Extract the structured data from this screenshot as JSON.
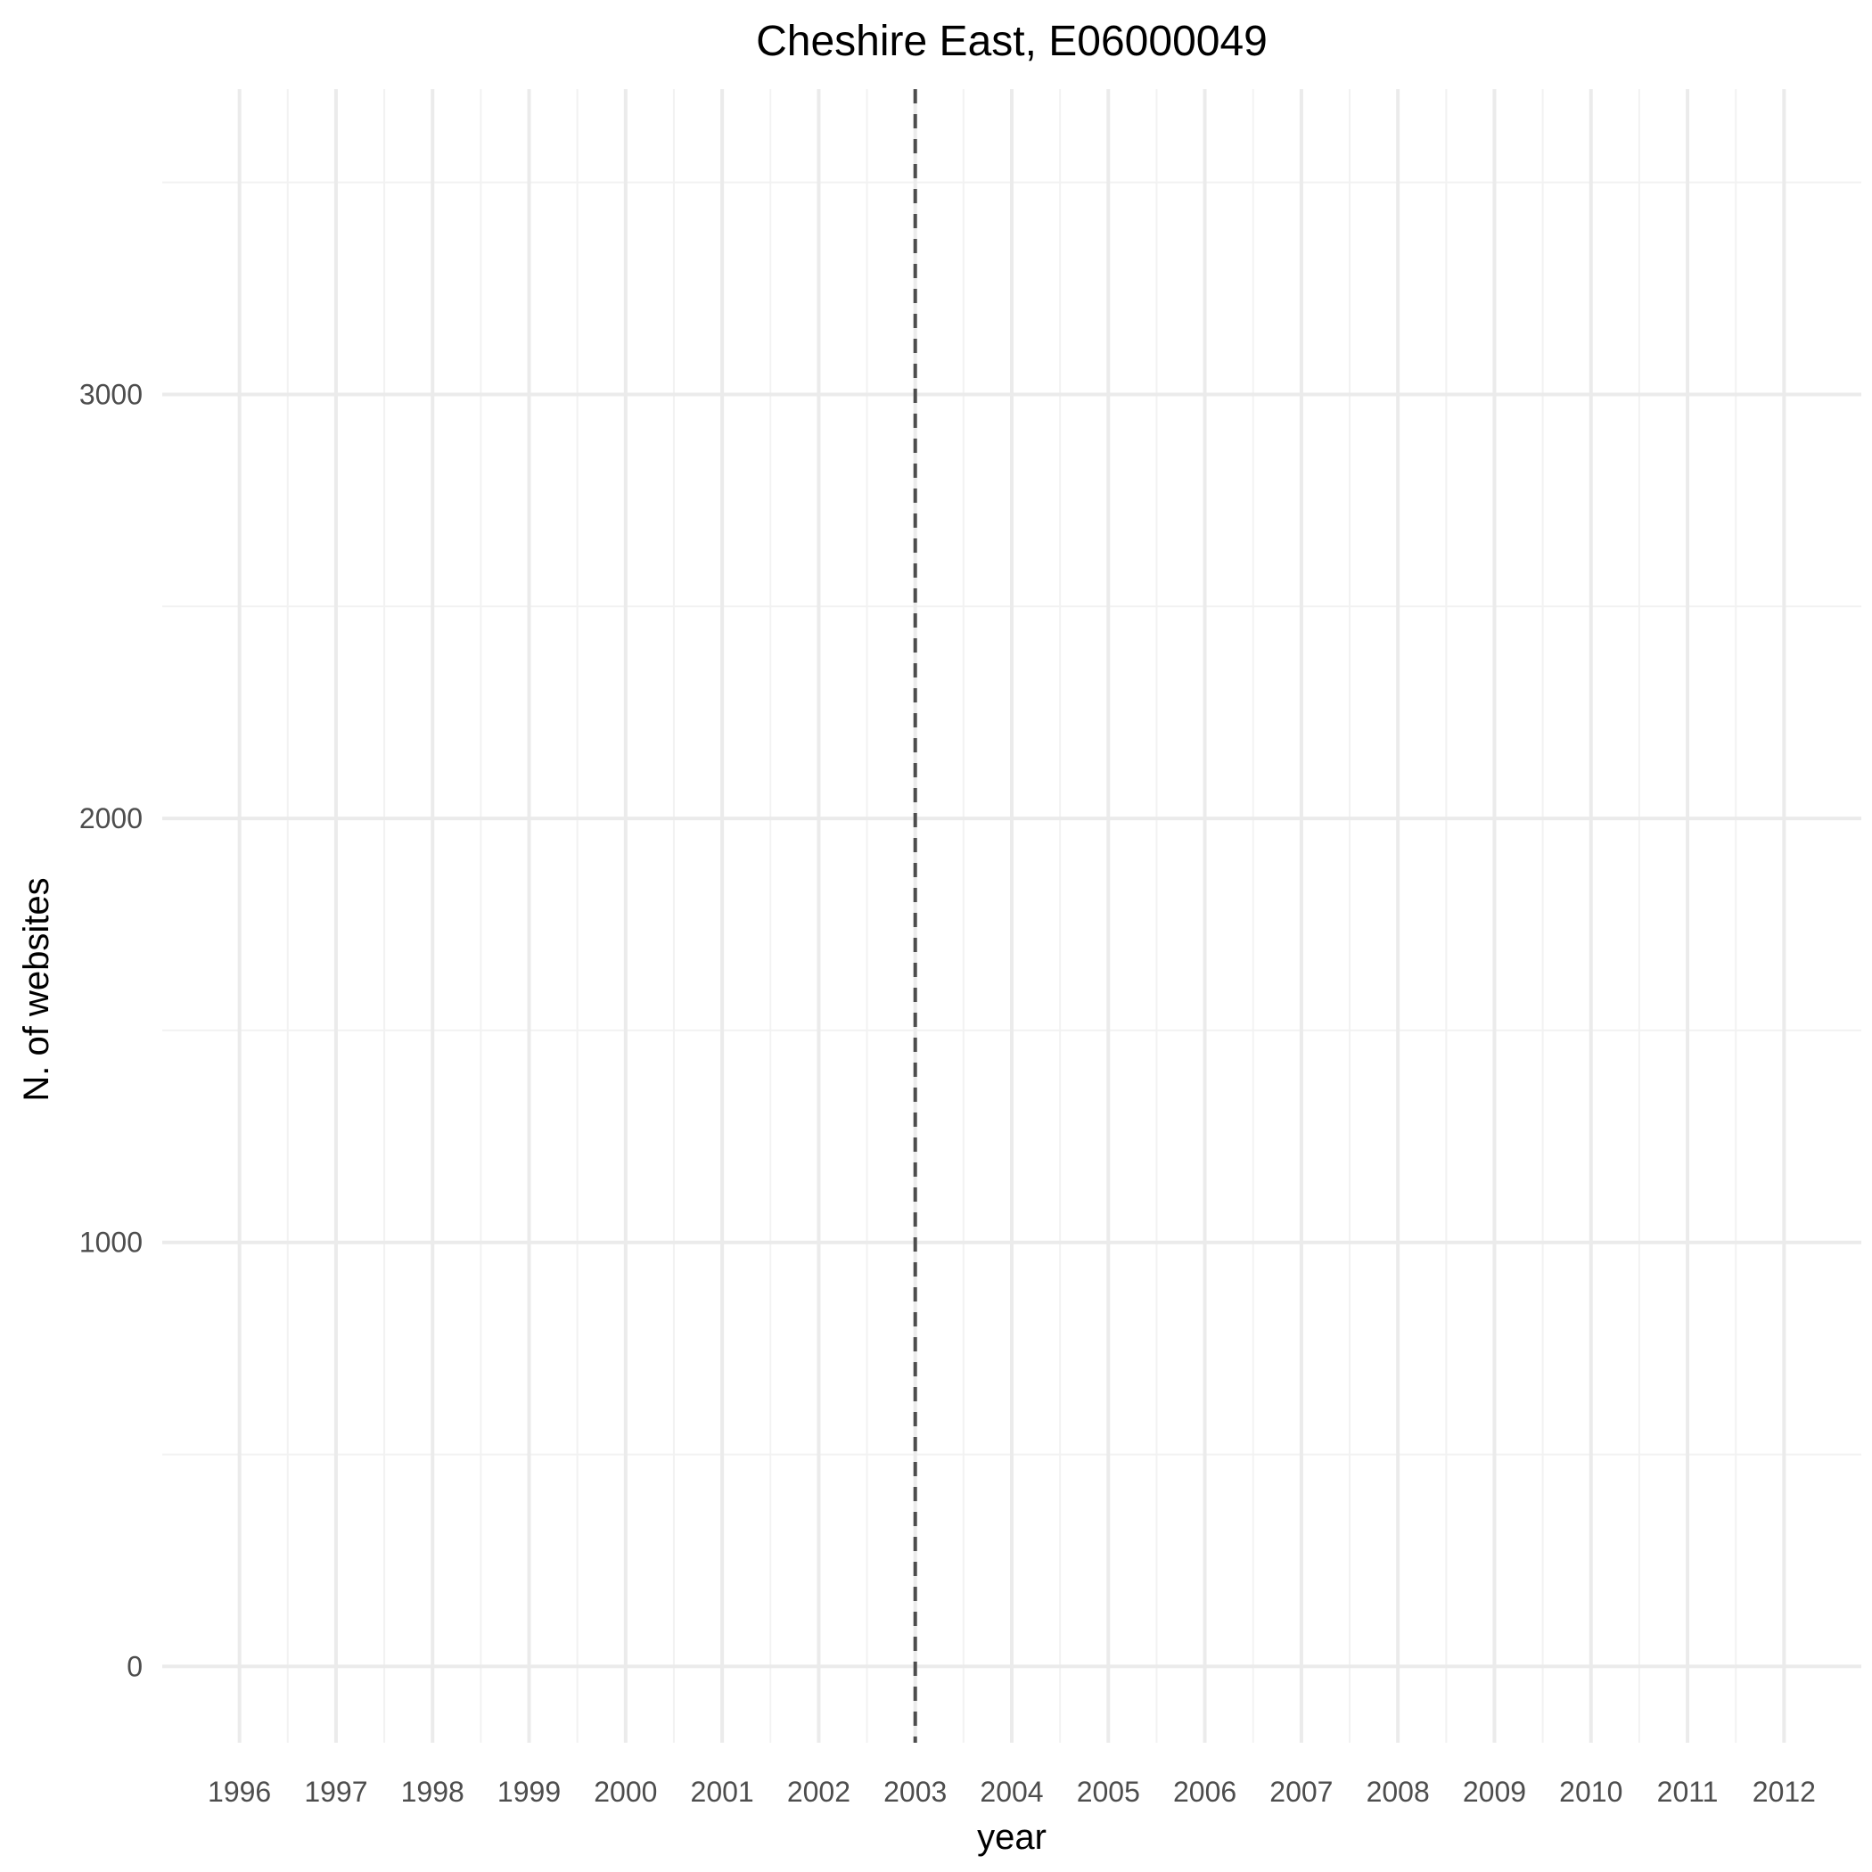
{
  "chart_data": {
    "type": "line",
    "title": "Cheshire East, E06000049",
    "xlabel": "year",
    "ylabel": "N. of websites",
    "x_ticks": [
      "1996",
      "1997",
      "1998",
      "1999",
      "2000",
      "2001",
      "2002",
      "2003",
      "2004",
      "2005",
      "2006",
      "2007",
      "2008",
      "2009",
      "2010",
      "2011",
      "2012"
    ],
    "y_ticks": [
      "0",
      "1000",
      "2000",
      "3000"
    ],
    "xlim": [
      1995.2,
      2012.8
    ],
    "ylim": [
      -180,
      3720
    ],
    "series": [],
    "reference_lines": [
      {
        "axis": "x",
        "value": 2003,
        "style": "dashed",
        "color": "#4d4d4d"
      }
    ],
    "grid": true,
    "legend": "none",
    "colors": {
      "background": "#ffffff",
      "grid_major": "#ebebeb",
      "grid_minor": "#f2f2f2",
      "tick_text": "#4d4d4d",
      "text": "#000000"
    }
  }
}
